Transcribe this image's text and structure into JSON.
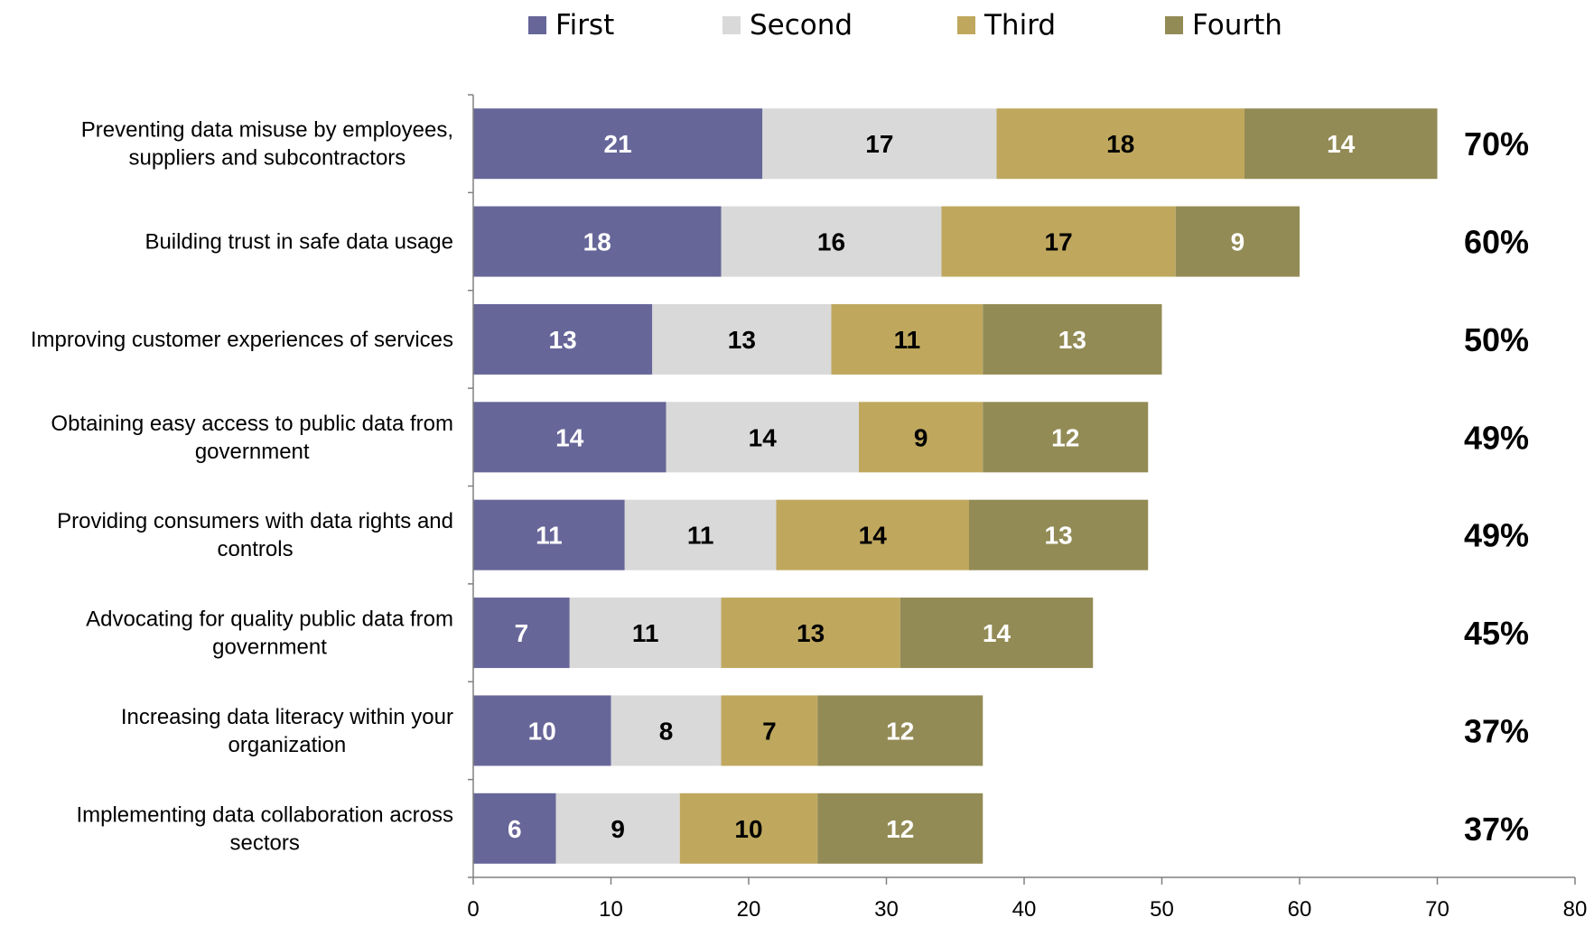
{
  "chart_data": {
    "type": "bar",
    "orientation": "horizontal",
    "stacked": true,
    "categories": [
      "Preventing data misuse by employees, suppliers and subcontractors",
      "Building trust in safe data usage",
      "Improving customer experiences of services",
      "Obtaining easy access to public data from government",
      "Providing consumers with data rights and controls",
      "Advocating for quality public data from government",
      "Increasing data literacy within your organization",
      "Implementing data collaboration across sectors"
    ],
    "series": [
      {
        "name": "First",
        "color": "#676699",
        "label_color": "#ffffff",
        "values": [
          21,
          18,
          13,
          14,
          11,
          7,
          10,
          6
        ]
      },
      {
        "name": "Second",
        "color": "#d9d9d9",
        "label_color": "#000000",
        "values": [
          17,
          16,
          13,
          14,
          11,
          11,
          8,
          9
        ]
      },
      {
        "name": "Third",
        "color": "#bfa85e",
        "label_color": "#000000",
        "values": [
          18,
          17,
          11,
          9,
          14,
          13,
          7,
          10
        ]
      },
      {
        "name": "Fourth",
        "color": "#938b55",
        "label_color": "#ffffff",
        "values": [
          14,
          9,
          13,
          12,
          13,
          14,
          12,
          12
        ]
      }
    ],
    "totals": [
      "70%",
      "60%",
      "50%",
      "49%",
      "49%",
      "45%",
      "37%",
      "37%"
    ],
    "xlim": [
      0,
      80
    ],
    "xticks": [
      0,
      10,
      20,
      30,
      40,
      50,
      60,
      70,
      80
    ],
    "legend": "top",
    "grid": false,
    "title": "",
    "xlabel": "",
    "ylabel": ""
  }
}
